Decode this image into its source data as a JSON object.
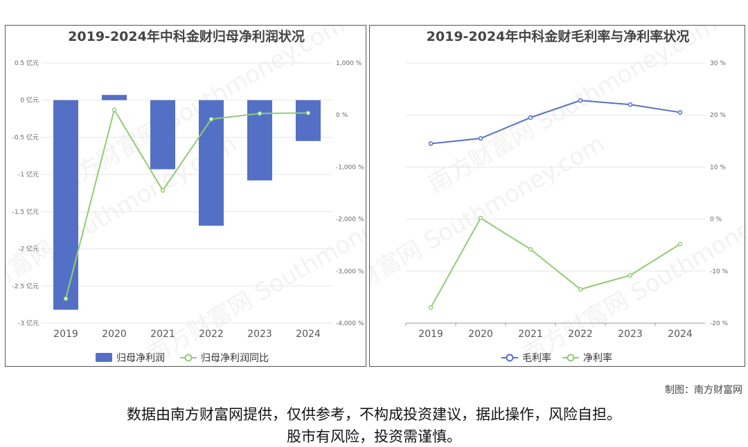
{
  "chart_data": [
    {
      "type": "bar+line",
      "title": "2019-2024年中科金财归母净利润状况",
      "categories": [
        "2019",
        "2020",
        "2021",
        "2022",
        "2023",
        "2024"
      ],
      "y_left": {
        "ticks": [
          0.5,
          0,
          -0.5,
          -1,
          -1.5,
          -2,
          -2.5,
          -3
        ],
        "unit": "亿元",
        "ylim": [
          -3,
          0.5
        ]
      },
      "y_right": {
        "ticks": [
          1000,
          0,
          -1000,
          -2000,
          -3000,
          -4000
        ],
        "unit": "%",
        "ylim": [
          -4000,
          1000
        ]
      },
      "series": [
        {
          "name": "归母净利润",
          "type": "bar",
          "axis": "left",
          "color": "#5470c6",
          "values": [
            -2.82,
            0.07,
            -0.93,
            -1.69,
            -1.08,
            -0.55
          ]
        },
        {
          "name": "归母净利润同比",
          "type": "line",
          "axis": "right",
          "color": "#91cc75",
          "values": [
            -3530,
            100,
            -1450,
            -80,
            30,
            40
          ]
        }
      ],
      "legend": "bottom-center",
      "grid": true
    },
    {
      "type": "line",
      "title": "2019-2024年中科金财毛利率与净利率状况",
      "categories": [
        "2019",
        "2020",
        "2021",
        "2022",
        "2023",
        "2024"
      ],
      "y_right": {
        "ticks": [
          30,
          20,
          10,
          0,
          -10,
          -20
        ],
        "unit": "%",
        "ylim": [
          -20,
          30
        ]
      },
      "series": [
        {
          "name": "毛利率",
          "type": "line",
          "axis": "right",
          "color": "#5470c6",
          "values": [
            14.5,
            15.5,
            19.5,
            22.8,
            22.0,
            20.5
          ]
        },
        {
          "name": "净利率",
          "type": "line",
          "axis": "right",
          "color": "#91cc75",
          "values": [
            -17.0,
            0.2,
            -5.8,
            -13.5,
            -10.8,
            -4.8
          ]
        }
      ],
      "legend": "bottom-center",
      "grid": true
    }
  ],
  "footer": {
    "credit": "制图：南方财富网",
    "disclaimer_line1": "数据由南方财富网提供，仅供参考，不构成投资建议，据此操作，风险自担。",
    "disclaimer_line2": "股市有风险，投资需谨慎。"
  },
  "watermark": {
    "text": "南方财富网",
    "latin": "Southmoney.com"
  }
}
